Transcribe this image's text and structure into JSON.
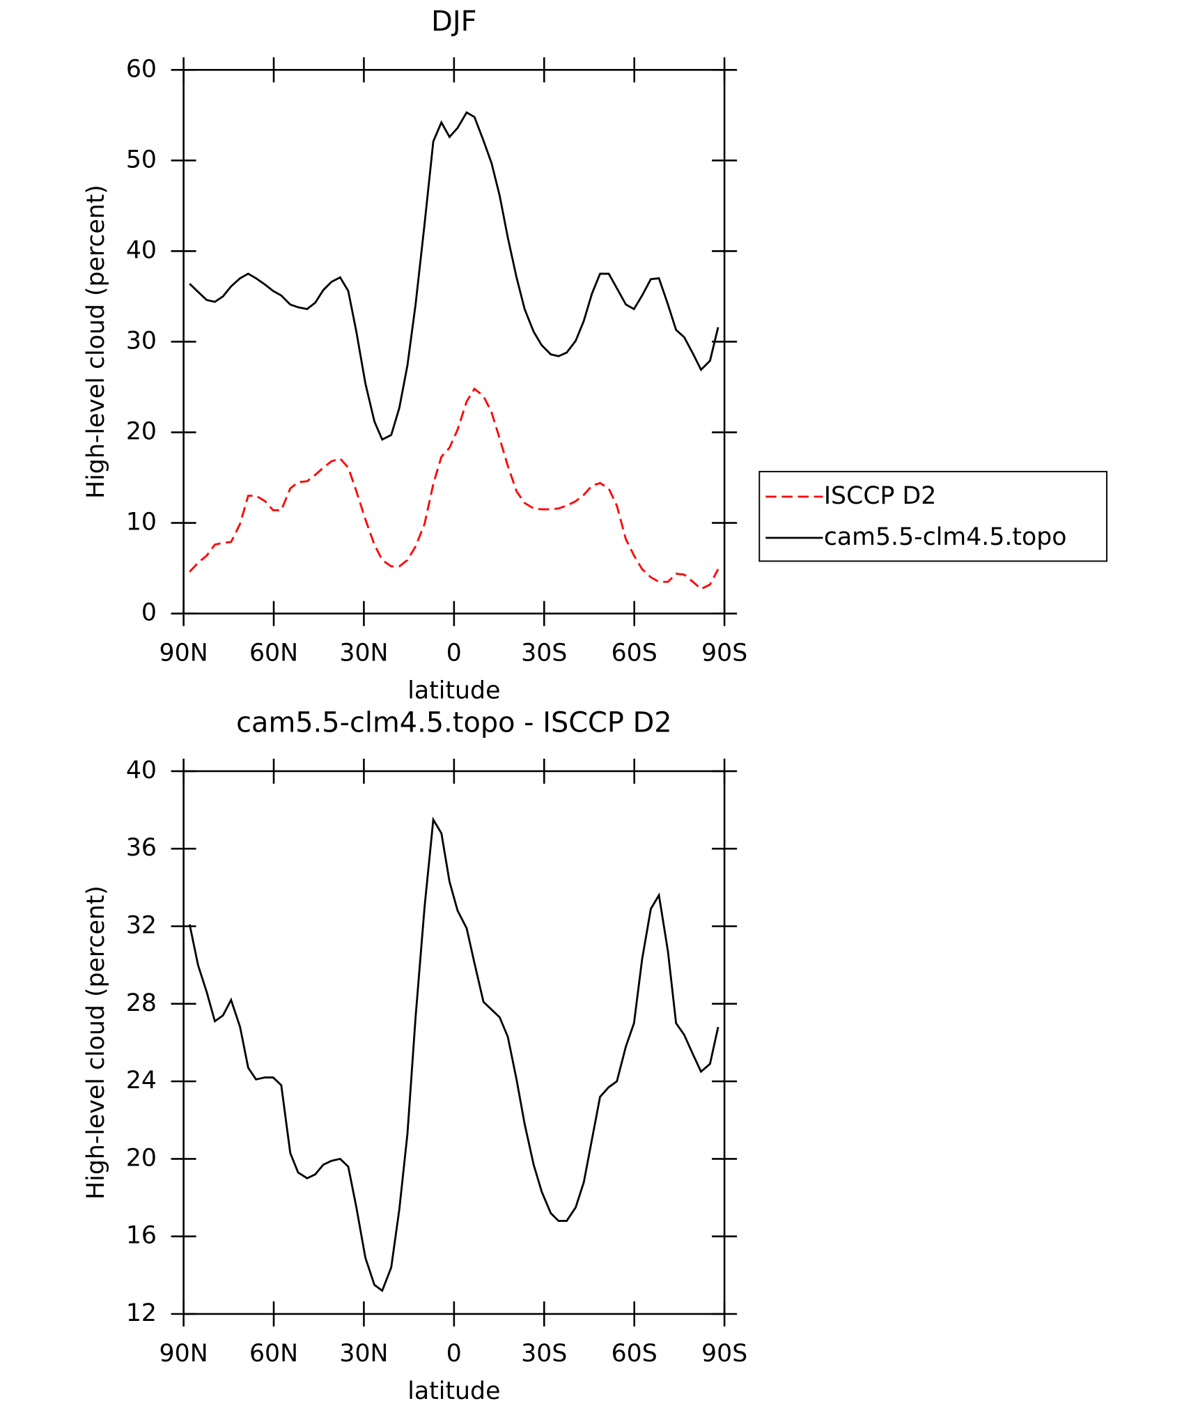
{
  "chart_data": [
    {
      "type": "line",
      "title": "DJF",
      "xlabel": "latitude",
      "ylabel": "High-level cloud (percent)",
      "x": [
        88.0,
        85.2,
        82.3,
        79.6,
        76.9,
        74.2,
        71.2,
        68.5,
        65.9,
        62.9,
        60.2,
        57.5,
        54.5,
        51.9,
        48.9,
        46.2,
        43.5,
        40.8,
        37.9,
        35.2,
        32.5,
        29.5,
        26.5,
        23.9,
        20.9,
        18.2,
        15.5,
        12.8,
        9.8,
        6.9,
        4.2,
        1.5,
        -1.2,
        -4.2,
        -6.8,
        -9.8,
        -12.5,
        -15.2,
        -17.9,
        -20.8,
        -23.5,
        -26.5,
        -29.2,
        -32.2,
        -34.8,
        -37.5,
        -40.5,
        -43.2,
        -45.9,
        -48.6,
        -51.5,
        -54.2,
        -57.2,
        -59.9,
        -62.6,
        -65.5,
        -68.2,
        -71.2,
        -73.9,
        -76.6,
        -79.5,
        -82.2,
        -85.2,
        -87.9
      ],
      "series": [
        {
          "name": "ISCCP D2",
          "color": "#ff0000",
          "line_style": "dashed",
          "values": [
            4.6,
            5.6,
            6.4,
            7.6,
            7.8,
            7.9,
            9.9,
            13.0,
            13.0,
            12.4,
            11.4,
            11.4,
            13.8,
            14.5,
            14.6,
            15.3,
            16.1,
            16.8,
            17.1,
            16.1,
            13.5,
            10.4,
            7.6,
            5.9,
            5.2,
            5.2,
            5.9,
            7.4,
            9.9,
            14.3,
            17.3,
            18.3,
            20.3,
            23.4,
            24.8,
            24.0,
            22.2,
            19.3,
            16.3,
            13.5,
            12.2,
            11.6,
            11.5,
            11.5,
            11.6,
            11.9,
            12.4,
            13.1,
            14.1,
            14.4,
            13.8,
            11.9,
            8.2,
            6.4,
            4.9,
            4.0,
            3.5,
            3.5,
            4.4,
            4.3,
            3.5,
            2.7,
            3.2,
            4.9
          ]
        },
        {
          "name": "cam5.5-clm4.5.topo",
          "color": "#000000",
          "line_style": "solid",
          "values": [
            36.4,
            35.5,
            34.6,
            34.4,
            35.0,
            36.1,
            37.0,
            37.5,
            37.0,
            36.3,
            35.6,
            35.1,
            34.1,
            33.8,
            33.6,
            34.3,
            35.7,
            36.6,
            37.1,
            35.6,
            31.1,
            25.4,
            21.2,
            19.2,
            19.7,
            22.7,
            27.4,
            34.1,
            43.0,
            52.1,
            54.2,
            52.6,
            53.6,
            55.3,
            54.8,
            52.2,
            49.7,
            46.1,
            41.5,
            37.1,
            33.6,
            31.1,
            29.6,
            28.6,
            28.4,
            28.8,
            30.1,
            32.3,
            35.3,
            37.5,
            37.5,
            35.9,
            34.1,
            33.6,
            35.1,
            36.9,
            37.0,
            34.1,
            31.3,
            30.5,
            28.7,
            26.9,
            27.9,
            31.6
          ]
        }
      ],
      "xlim": [
        90,
        -90
      ],
      "xticks": [
        {
          "value": 90,
          "label": "90N"
        },
        {
          "value": 60,
          "label": "60N"
        },
        {
          "value": 30,
          "label": "30N"
        },
        0,
        {
          "value": -30,
          "label": "30S"
        },
        {
          "value": -60,
          "label": "60S"
        },
        {
          "value": -90,
          "label": "90S"
        }
      ],
      "ylim": [
        0,
        60
      ],
      "yticks": [
        0,
        10,
        20,
        30,
        40,
        50,
        60
      ],
      "grid": false,
      "legend": "right"
    },
    {
      "type": "line",
      "title": "cam5.5-clm4.5.topo - ISCCP D2",
      "xlabel": "latitude",
      "ylabel": "High-level cloud (percent)",
      "x": [
        88.0,
        85.2,
        82.3,
        79.6,
        76.9,
        74.2,
        71.2,
        68.5,
        65.9,
        62.9,
        60.2,
        57.5,
        54.5,
        51.9,
        48.9,
        46.2,
        43.5,
        40.8,
        37.9,
        35.2,
        32.5,
        29.5,
        26.5,
        23.9,
        20.9,
        18.2,
        15.5,
        12.8,
        9.8,
        6.9,
        4.2,
        1.5,
        -1.2,
        -4.2,
        -6.8,
        -9.8,
        -12.5,
        -15.2,
        -17.9,
        -20.8,
        -23.5,
        -26.5,
        -29.2,
        -32.2,
        -34.8,
        -37.5,
        -40.5,
        -43.2,
        -45.9,
        -48.6,
        -51.5,
        -54.2,
        -57.2,
        -59.9,
        -62.6,
        -65.5,
        -68.2,
        -71.2,
        -73.9,
        -76.6,
        -79.5,
        -82.2,
        -85.2,
        -87.9
      ],
      "series": [
        {
          "color": "#000000",
          "line_style": "solid",
          "values": [
            32.1,
            30.0,
            28.6,
            27.1,
            27.4,
            28.2,
            26.8,
            24.7,
            24.1,
            24.2,
            24.2,
            23.8,
            20.3,
            19.3,
            19.0,
            19.2,
            19.7,
            19.9,
            20.0,
            19.6,
            17.5,
            14.9,
            13.5,
            13.2,
            14.4,
            17.4,
            21.3,
            27.3,
            33.0,
            37.5,
            36.8,
            34.3,
            32.8,
            31.9,
            30.1,
            28.1,
            27.7,
            27.3,
            26.3,
            24.1,
            21.8,
            19.7,
            18.3,
            17.2,
            16.8,
            16.8,
            17.5,
            18.8,
            21.0,
            23.2,
            23.7,
            24.0,
            25.8,
            27.0,
            30.3,
            32.9,
            33.6,
            30.7,
            27.0,
            26.4,
            25.4,
            24.5,
            24.9,
            26.8
          ]
        }
      ],
      "xlim": [
        90,
        -90
      ],
      "xticks": [
        {
          "value": 90,
          "label": "90N"
        },
        {
          "value": 60,
          "label": "60N"
        },
        {
          "value": 30,
          "label": "30N"
        },
        0,
        {
          "value": -30,
          "label": "30S"
        },
        {
          "value": -60,
          "label": "60S"
        },
        {
          "value": -90,
          "label": "90S"
        }
      ],
      "ylim": [
        12,
        40
      ],
      "yticks": [
        12,
        16,
        20,
        24,
        28,
        32,
        36,
        40
      ],
      "grid": false
    }
  ]
}
